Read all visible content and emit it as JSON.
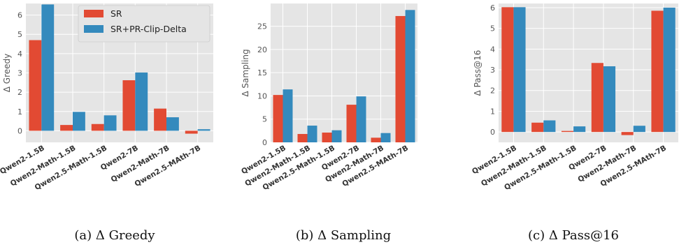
{
  "colors": {
    "sr": "#E24A33",
    "srpr": "#348ABD",
    "plot_bg": "#E5E5E5",
    "grid": "#FFFFFF"
  },
  "legend": {
    "placement": "top-right",
    "entries": [
      "SR",
      "SR+PR-Clip-Delta"
    ]
  },
  "chart_data": [
    {
      "type": "bar",
      "caption": "(a) Δ Greedy",
      "ylabel": "Δ Greedy",
      "categories": [
        "Qwen2-1.5B",
        "Qwen2-Math-1.5B",
        "Qwen2.5-Math-1.5B",
        "Qwen2-7B",
        "Qwen2-Math-7B",
        "Qwen2.5-MAth-7B"
      ],
      "series": [
        {
          "name": "SR",
          "values": [
            4.7,
            0.3,
            0.35,
            2.62,
            1.15,
            -0.15
          ]
        },
        {
          "name": "SR+PR-Clip-Delta",
          "values": [
            6.55,
            0.98,
            0.8,
            3.02,
            0.7,
            0.08
          ]
        }
      ],
      "ylim": [
        -0.6,
        6.6
      ],
      "yticks": [
        0,
        1,
        2,
        3,
        4,
        5,
        6
      ],
      "grid": true,
      "legend": true
    },
    {
      "type": "bar",
      "caption": "(b) Δ Sampling",
      "ylabel": "Δ Sampling",
      "categories": [
        "Qwen2-1.5B",
        "Qwen2-Math-1.5B",
        "Qwen2.5-Math-1.5B",
        "Qwen2-7B",
        "Qwen2-Math-7B",
        "Qwen2.5-MAth-7B"
      ],
      "series": [
        {
          "name": "SR",
          "values": [
            10.2,
            1.8,
            2.1,
            8.1,
            1.0,
            27.2
          ]
        },
        {
          "name": "SR+PR-Clip-Delta",
          "values": [
            11.4,
            3.6,
            2.6,
            9.9,
            2.0,
            28.5
          ]
        }
      ],
      "ylim": [
        0,
        29.9
      ],
      "yticks": [
        0,
        5,
        10,
        15,
        20,
        25
      ],
      "grid": true,
      "legend": false
    },
    {
      "type": "bar",
      "caption": "(c) Δ Pass@16",
      "ylabel": "Δ Pass@16",
      "categories": [
        "Qwen2-1.5B",
        "Qwen2-Math-1.5B",
        "Qwen2.5-Math-1.5B",
        "Qwen2-7B",
        "Qwen2-Math-7B",
        "Qwen2.5-MAth-7B"
      ],
      "series": [
        {
          "name": "SR",
          "values": [
            6.02,
            0.45,
            0.05,
            3.33,
            -0.15,
            5.85
          ]
        },
        {
          "name": "SR+PR-Clip-Delta",
          "values": [
            6.02,
            0.56,
            0.27,
            3.17,
            0.3,
            6.0
          ]
        }
      ],
      "ylim": [
        -0.5,
        6.2
      ],
      "yticks": [
        0,
        1,
        2,
        3,
        4,
        5,
        6
      ],
      "grid": true,
      "legend": false
    }
  ]
}
